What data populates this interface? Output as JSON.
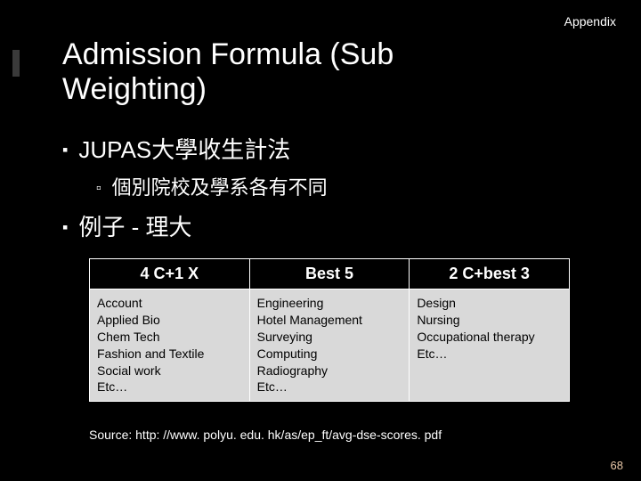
{
  "appendix": "Appendix",
  "title": "Admission Formula (Sub Weighting)",
  "bullets": {
    "b1": "JUPAS大學收生計法",
    "b2": "個別院校及學系各有不同",
    "b3": "例子 - 理大"
  },
  "table": {
    "headers": [
      "4 C+1 X",
      "Best 5",
      "2 C+best 3"
    ],
    "col1": "Account\nApplied Bio\nChem Tech\nFashion and Textile\nSocial work\nEtc…",
    "col2": "Engineering\nHotel Management\nSurveying\nComputing\nRadiography\nEtc…",
    "col3": "Design\nNursing\nOccupational therapy\nEtc…",
    "header_bg": "#000000",
    "header_color": "#ffffff",
    "cell_bg": "#d9d9d9",
    "cell_color": "#000000",
    "border_color": "#ffffff"
  },
  "source": "Source: http: //www. polyu. edu. hk/as/ep_ft/avg-dse-scores. pdf",
  "pagenum": "68",
  "colors": {
    "background": "#000000",
    "text": "#ffffff",
    "pagenum": "#e8c8a8"
  }
}
